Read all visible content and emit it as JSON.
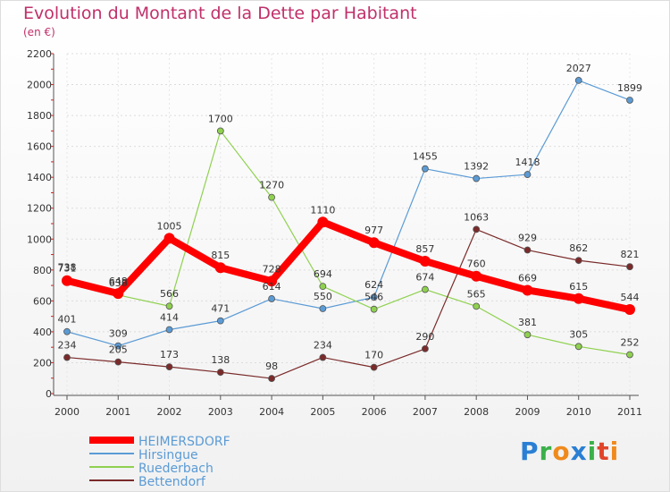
{
  "title": "Evolution du Montant de la Dette par Habitant",
  "subtitle": "(en €)",
  "logo": {
    "text": "Proxiti",
    "colors": [
      "#2a7fd4",
      "#3bb04a",
      "#f08a1c",
      "#2a7fd4",
      "#3bb04a",
      "#e0452a",
      "#f08a1c"
    ]
  },
  "chart_data": {
    "type": "line",
    "x": [
      "2000",
      "2001",
      "2002",
      "2003",
      "2004",
      "2005",
      "2006",
      "2007",
      "2008",
      "2009",
      "2010",
      "2011"
    ],
    "ylim": [
      0,
      2200
    ],
    "yticks": [
      0,
      200,
      400,
      600,
      800,
      1000,
      1200,
      1400,
      1600,
      1800,
      2000,
      2200
    ],
    "grid": true,
    "legend_position": "bottom-left",
    "series": [
      {
        "name": "HEIMERSDORF",
        "color": "#ff0000",
        "values": [
          731,
          648,
          1005,
          815,
          728,
          1110,
          977,
          857,
          760,
          669,
          615,
          544
        ],
        "labels": [
          "731",
          "648",
          "1005",
          "815",
          "728",
          "1110",
          "977",
          "857",
          "760",
          "669",
          "615",
          "544"
        ]
      },
      {
        "name": "Hirsingue",
        "color": "#5b9bd5",
        "values": [
          401,
          309,
          414,
          471,
          614,
          550,
          624,
          1455,
          1392,
          1418,
          2027,
          1899
        ],
        "labels": [
          "401",
          "309",
          "414",
          "471",
          "614",
          "550",
          "624",
          "1455",
          "1392",
          "1418",
          "2027",
          "1899"
        ]
      },
      {
        "name": "Ruederbach",
        "color": "#8fd14f",
        "values": [
          738,
          638,
          566,
          1700,
          1270,
          694,
          546,
          674,
          565,
          381,
          305,
          252
        ],
        "labels": [
          "738",
          "638",
          "566",
          "1700",
          "1270",
          "694",
          "546",
          "674",
          "565",
          "381",
          "305",
          "252"
        ]
      },
      {
        "name": "Bettendorf",
        "color": "#7b2a2a",
        "values": [
          234,
          205,
          173,
          138,
          98,
          234,
          170,
          290,
          1063,
          929,
          862,
          821
        ],
        "labels": [
          "234",
          "205",
          "173",
          "138",
          "98",
          "234",
          "170",
          "290",
          "1063",
          "929",
          "862",
          "821"
        ]
      }
    ]
  }
}
